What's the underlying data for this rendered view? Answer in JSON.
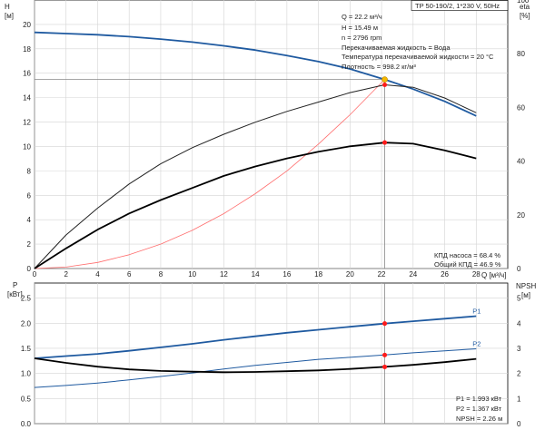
{
  "chart_data": [
    {
      "type": "line",
      "panel": "upper",
      "title": "TP 50-190/2, 1*230 V, 50Hz",
      "xlabel": "Q [м³/ч]",
      "xlim": [
        0,
        30
      ],
      "xticks": [
        0,
        2,
        4,
        6,
        8,
        10,
        12,
        14,
        16,
        18,
        20,
        22,
        24,
        26,
        28
      ],
      "left_axis": {
        "label_line1": "H",
        "label_line2": "[м]",
        "ylim": [
          0,
          22
        ],
        "ticks": [
          0,
          2,
          4,
          6,
          8,
          10,
          12,
          14,
          16,
          18,
          20
        ]
      },
      "right_axis": {
        "label_line1": "eta",
        "label_line2": "[%]",
        "ylim": [
          0,
          100
        ],
        "ticks": [
          0,
          20,
          40,
          60,
          80,
          100
        ]
      },
      "grid": true,
      "series": [
        {
          "axis": "left",
          "color": "#1f5aa0",
          "x": [
            0,
            2,
            4,
            6,
            8,
            10,
            12,
            14,
            16,
            18,
            20,
            22.2,
            24,
            26,
            28
          ],
          "y": [
            19.35,
            19.25,
            19.15,
            19.0,
            18.8,
            18.55,
            18.25,
            17.9,
            17.45,
            16.95,
            16.35,
            15.49,
            14.7,
            13.7,
            12.5
          ]
        },
        {
          "axis": "left",
          "color": "#ff6e6e",
          "x": [
            0,
            2,
            4,
            6,
            8,
            10,
            12,
            14,
            16,
            18,
            20,
            22.2
          ],
          "y": [
            0,
            0.12,
            0.5,
            1.13,
            2.0,
            3.13,
            4.5,
            6.13,
            8.0,
            10.2,
            12.6,
            15.49
          ]
        },
        {
          "axis": "right",
          "color": "#222222",
          "x": [
            0,
            2,
            4,
            6,
            8,
            10,
            12,
            14,
            16,
            18,
            20,
            22.2,
            24,
            26,
            28
          ],
          "y": [
            0,
            12.5,
            22.5,
            31.5,
            39.0,
            45.0,
            50.0,
            54.5,
            58.5,
            62.0,
            65.5,
            68.4,
            67.5,
            63.5,
            58.0
          ]
        },
        {
          "axis": "right",
          "color": "#000000",
          "x": [
            0,
            2,
            4,
            6,
            8,
            10,
            12,
            14,
            16,
            18,
            20,
            22.2,
            24,
            26,
            28
          ],
          "y": [
            0,
            7.5,
            14.5,
            20.5,
            25.5,
            30.0,
            34.5,
            38.0,
            41.0,
            43.5,
            45.5,
            46.9,
            46.5,
            44.0,
            41.0
          ]
        }
      ],
      "operating_point": {
        "q": 22.2,
        "h": 15.49,
        "eta_pump": 68.4,
        "eta_total": 46.9
      },
      "annotations": [
        "Q = 22.2 м³/ч",
        "H = 15.49 м",
        "n = 2796 rpm",
        "Перекачиваемая жидкость = Вода",
        "Температура перекачиваемой жидкости = 20 °C",
        "Плотность = 998.2 кг/м³"
      ],
      "legend_notes": [
        "КПД насоса = 68.4 %",
        "Общий КПД = 46.9 %"
      ]
    },
    {
      "type": "line",
      "panel": "lower",
      "xlim": [
        0,
        30
      ],
      "left_axis": {
        "label_line1": "P",
        "label_line2": "[кВт]",
        "ylim": [
          0,
          2.8
        ],
        "ticks": [
          "0.0",
          "0.5",
          "1.0",
          "1.5",
          "2.0",
          "2.5"
        ]
      },
      "right_axis": {
        "label_line1": "NPSH",
        "label_line2": "[м]",
        "ylim": [
          0,
          5.6
        ],
        "ticks": [
          0,
          1,
          2,
          3,
          4,
          5
        ]
      },
      "grid": true,
      "series": [
        {
          "name": "P1",
          "axis": "left",
          "color": "#1f5aa0",
          "x": [
            0,
            2,
            4,
            6,
            8,
            10,
            12,
            14,
            16,
            18,
            20,
            22.2,
            24,
            26,
            28
          ],
          "y": [
            1.3,
            1.345,
            1.39,
            1.45,
            1.52,
            1.59,
            1.67,
            1.74,
            1.81,
            1.87,
            1.93,
            1.993,
            2.04,
            2.09,
            2.14
          ]
        },
        {
          "name": "P2",
          "axis": "left",
          "color": "#1f5aa0",
          "x": [
            0,
            2,
            4,
            6,
            8,
            10,
            12,
            14,
            16,
            18,
            20,
            22.2,
            24,
            26,
            28
          ],
          "y": [
            0.72,
            0.76,
            0.81,
            0.87,
            0.94,
            1.01,
            1.09,
            1.16,
            1.22,
            1.28,
            1.32,
            1.367,
            1.41,
            1.45,
            1.49
          ]
        },
        {
          "axis": "right",
          "color": "#000000",
          "x": [
            0,
            2,
            4,
            6,
            8,
            10,
            12,
            14,
            16,
            18,
            20,
            22.2,
            24,
            26,
            28
          ],
          "y": [
            2.6,
            2.42,
            2.27,
            2.16,
            2.1,
            2.07,
            2.05,
            2.06,
            2.09,
            2.12,
            2.18,
            2.26,
            2.34,
            2.45,
            2.58
          ]
        }
      ],
      "operating_point": {
        "q": 22.2,
        "p1": 1.993,
        "p2": 1.367,
        "npsh": 2.26
      },
      "legend_notes": [
        "P1 = 1.993 кВт",
        "P2 = 1.367 кВт",
        "NPSH = 2.26 м"
      ]
    }
  ]
}
